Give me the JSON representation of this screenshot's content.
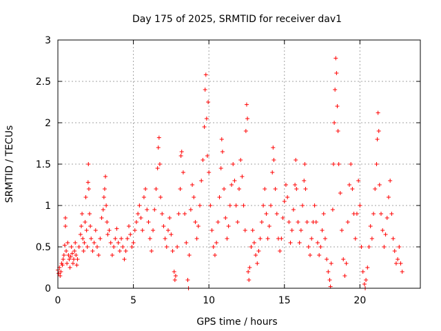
{
  "chart_data": {
    "type": "scatter",
    "title": "Day 175 of 2025, SRMTID for receiver dav1",
    "xlabel": "GPS time / hours",
    "ylabel": "SRMTID / TECUs",
    "xlim": [
      0,
      24
    ],
    "ylim": [
      0,
      3
    ],
    "xticks": [
      0,
      5,
      10,
      15,
      20
    ],
    "xtick_labels": [
      "0",
      "5",
      "10",
      "15",
      "20"
    ],
    "yticks": [
      0,
      0.5,
      1,
      1.5,
      2,
      2.5,
      3
    ],
    "ytick_labels": [
      "0",
      "0.5",
      "1",
      "1.5",
      "2",
      "2.5",
      "3"
    ],
    "grid": true,
    "marker": "+",
    "series": [
      {
        "name": "SRMTID",
        "color": "#ff0000",
        "points": [
          [
            0.0,
            0.22
          ],
          [
            0.05,
            0.18
          ],
          [
            0.1,
            0.25
          ],
          [
            0.15,
            0.15
          ],
          [
            0.2,
            0.2
          ],
          [
            0.25,
            0.3
          ],
          [
            0.3,
            0.28
          ],
          [
            0.35,
            0.35
          ],
          [
            0.4,
            0.4
          ],
          [
            0.45,
            0.52
          ],
          [
            0.5,
            0.85
          ],
          [
            0.5,
            0.75
          ],
          [
            0.55,
            0.45
          ],
          [
            0.6,
            0.3
          ],
          [
            0.65,
            0.55
          ],
          [
            0.7,
            0.4
          ],
          [
            0.75,
            0.35
          ],
          [
            0.8,
            0.25
          ],
          [
            0.85,
            0.38
          ],
          [
            0.9,
            0.5
          ],
          [
            0.95,
            0.42
          ],
          [
            1.0,
            0.3
          ],
          [
            1.05,
            0.35
          ],
          [
            1.1,
            0.45
          ],
          [
            1.15,
            0.55
          ],
          [
            1.2,
            0.4
          ],
          [
            1.25,
            0.28
          ],
          [
            1.3,
            0.35
          ],
          [
            1.4,
            0.5
          ],
          [
            1.5,
            0.65
          ],
          [
            1.55,
            0.75
          ],
          [
            1.6,
            0.9
          ],
          [
            1.65,
            0.6
          ],
          [
            1.7,
            0.45
          ],
          [
            1.75,
            0.55
          ],
          [
            1.8,
            0.8
          ],
          [
            1.85,
            1.1
          ],
          [
            1.9,
            0.7
          ],
          [
            1.95,
            0.5
          ],
          [
            2.0,
            1.28
          ],
          [
            2.02,
            1.5
          ],
          [
            2.05,
            1.2
          ],
          [
            2.1,
            0.9
          ],
          [
            2.15,
            0.75
          ],
          [
            2.2,
            0.6
          ],
          [
            2.3,
            0.45
          ],
          [
            2.4,
            0.55
          ],
          [
            2.5,
            0.7
          ],
          [
            2.6,
            0.5
          ],
          [
            2.7,
            0.4
          ],
          [
            2.8,
            0.6
          ],
          [
            2.9,
            0.85
          ],
          [
            3.0,
            0.95
          ],
          [
            3.05,
            1.1
          ],
          [
            3.1,
            1.2
          ],
          [
            3.15,
            1.35
          ],
          [
            3.2,
            1.0
          ],
          [
            3.25,
            0.8
          ],
          [
            3.3,
            0.65
          ],
          [
            3.4,
            0.7
          ],
          [
            3.5,
            0.55
          ],
          [
            3.6,
            0.4
          ],
          [
            3.7,
            0.5
          ],
          [
            3.8,
            0.6
          ],
          [
            3.9,
            0.72
          ],
          [
            4.0,
            0.55
          ],
          [
            4.1,
            0.45
          ],
          [
            4.2,
            0.6
          ],
          [
            4.3,
            0.5
          ],
          [
            4.4,
            0.35
          ],
          [
            4.5,
            0.45
          ],
          [
            4.6,
            0.6
          ],
          [
            4.7,
            0.75
          ],
          [
            4.8,
            0.65
          ],
          [
            4.9,
            0.5
          ],
          [
            5.0,
            0.55
          ],
          [
            5.1,
            0.7
          ],
          [
            5.2,
            0.8
          ],
          [
            5.3,
            0.9
          ],
          [
            5.4,
            1.0
          ],
          [
            5.5,
            0.85
          ],
          [
            5.6,
            0.7
          ],
          [
            5.7,
            1.1
          ],
          [
            5.8,
            1.2
          ],
          [
            5.9,
            0.95
          ],
          [
            6.0,
            0.8
          ],
          [
            6.1,
            0.6
          ],
          [
            6.2,
            0.45
          ],
          [
            6.3,
            0.7
          ],
          [
            6.4,
            0.95
          ],
          [
            6.5,
            1.2
          ],
          [
            6.6,
            1.45
          ],
          [
            6.65,
            1.7
          ],
          [
            6.7,
            1.82
          ],
          [
            6.75,
            1.5
          ],
          [
            6.8,
            1.1
          ],
          [
            6.9,
            0.9
          ],
          [
            7.0,
            0.75
          ],
          [
            7.1,
            0.6
          ],
          [
            7.2,
            0.5
          ],
          [
            7.3,
            0.7
          ],
          [
            7.4,
            0.85
          ],
          [
            7.5,
            0.65
          ],
          [
            7.6,
            0.45
          ],
          [
            7.7,
            0.2
          ],
          [
            7.75,
            0.1
          ],
          [
            7.8,
            0.15
          ],
          [
            7.9,
            0.5
          ],
          [
            8.0,
            0.9
          ],
          [
            8.1,
            1.2
          ],
          [
            8.15,
            1.6
          ],
          [
            8.2,
            1.65
          ],
          [
            8.3,
            1.4
          ],
          [
            8.4,
            0.9
          ],
          [
            8.5,
            0.55
          ],
          [
            8.6,
            0.1
          ],
          [
            8.65,
            0.0
          ],
          [
            8.7,
            0.4
          ],
          [
            8.8,
            0.95
          ],
          [
            8.9,
            1.25
          ],
          [
            9.0,
            1.1
          ],
          [
            9.1,
            0.8
          ],
          [
            9.2,
            0.6
          ],
          [
            9.3,
            0.75
          ],
          [
            9.4,
            1.0
          ],
          [
            9.5,
            1.3
          ],
          [
            9.6,
            1.55
          ],
          [
            9.7,
            1.95
          ],
          [
            9.75,
            2.4
          ],
          [
            9.8,
            2.58
          ],
          [
            9.85,
            2.05
          ],
          [
            9.9,
            1.6
          ],
          [
            9.95,
            2.25
          ],
          [
            10.0,
            1.4
          ],
          [
            10.1,
            1.0
          ],
          [
            10.2,
            0.7
          ],
          [
            10.3,
            0.5
          ],
          [
            10.4,
            0.4
          ],
          [
            10.5,
            0.55
          ],
          [
            10.6,
            0.8
          ],
          [
            10.7,
            1.1
          ],
          [
            10.8,
            1.45
          ],
          [
            10.85,
            1.8
          ],
          [
            10.9,
            1.65
          ],
          [
            11.0,
            1.2
          ],
          [
            11.1,
            0.85
          ],
          [
            11.2,
            0.6
          ],
          [
            11.3,
            0.75
          ],
          [
            11.4,
            1.0
          ],
          [
            11.5,
            1.25
          ],
          [
            11.6,
            1.5
          ],
          [
            11.7,
            1.3
          ],
          [
            11.8,
            1.0
          ],
          [
            11.9,
            0.8
          ],
          [
            12.0,
            1.2
          ],
          [
            12.1,
            1.55
          ],
          [
            12.2,
            1.35
          ],
          [
            12.3,
            1.0
          ],
          [
            12.4,
            0.7
          ],
          [
            12.45,
            1.9
          ],
          [
            12.5,
            2.22
          ],
          [
            12.55,
            2.05
          ],
          [
            12.6,
            0.2
          ],
          [
            12.65,
            0.1
          ],
          [
            12.7,
            0.25
          ],
          [
            12.8,
            0.5
          ],
          [
            12.9,
            0.7
          ],
          [
            13.0,
            0.55
          ],
          [
            13.1,
            0.4
          ],
          [
            13.2,
            0.3
          ],
          [
            13.3,
            0.45
          ],
          [
            13.4,
            0.6
          ],
          [
            13.5,
            0.8
          ],
          [
            13.6,
            1.0
          ],
          [
            13.7,
            1.2
          ],
          [
            13.8,
            0.9
          ],
          [
            13.9,
            0.6
          ],
          [
            14.0,
            0.75
          ],
          [
            14.1,
            1.0
          ],
          [
            14.2,
            1.4
          ],
          [
            14.25,
            1.7
          ],
          [
            14.3,
            1.55
          ],
          [
            14.4,
            1.2
          ],
          [
            14.5,
            0.9
          ],
          [
            14.6,
            0.6
          ],
          [
            14.7,
            0.45
          ],
          [
            14.8,
            0.6
          ],
          [
            14.9,
            0.85
          ],
          [
            15.0,
            1.05
          ],
          [
            15.1,
            1.25
          ],
          [
            15.2,
            1.1
          ],
          [
            15.3,
            0.8
          ],
          [
            15.4,
            0.55
          ],
          [
            15.5,
            0.7
          ],
          [
            15.6,
            0.95
          ],
          [
            15.7,
            1.25
          ],
          [
            15.75,
            1.55
          ],
          [
            15.8,
            1.2
          ],
          [
            15.9,
            0.8
          ],
          [
            16.0,
            0.55
          ],
          [
            16.1,
            0.7
          ],
          [
            16.2,
            1.0
          ],
          [
            16.3,
            1.3
          ],
          [
            16.35,
            1.5
          ],
          [
            16.4,
            1.2
          ],
          [
            16.5,
            0.8
          ],
          [
            16.6,
            0.5
          ],
          [
            16.7,
            0.4
          ],
          [
            16.8,
            0.6
          ],
          [
            16.9,
            0.8
          ],
          [
            17.0,
            1.0
          ],
          [
            17.1,
            0.8
          ],
          [
            17.2,
            0.55
          ],
          [
            17.3,
            0.4
          ],
          [
            17.4,
            0.5
          ],
          [
            17.5,
            0.7
          ],
          [
            17.6,
            0.9
          ],
          [
            17.7,
            0.6
          ],
          [
            17.8,
            0.35
          ],
          [
            17.9,
            0.2
          ],
          [
            18.0,
            0.1
          ],
          [
            18.05,
            0.02
          ],
          [
            18.1,
            0.3
          ],
          [
            18.2,
            0.95
          ],
          [
            18.25,
            1.5
          ],
          [
            18.3,
            2.0
          ],
          [
            18.35,
            2.4
          ],
          [
            18.4,
            2.78
          ],
          [
            18.45,
            2.6
          ],
          [
            18.5,
            2.2
          ],
          [
            18.55,
            1.9
          ],
          [
            18.6,
            1.5
          ],
          [
            18.7,
            1.15
          ],
          [
            18.8,
            0.7
          ],
          [
            18.9,
            0.35
          ],
          [
            19.0,
            0.15
          ],
          [
            19.1,
            0.3
          ],
          [
            19.2,
            0.8
          ],
          [
            19.3,
            1.25
          ],
          [
            19.4,
            1.5
          ],
          [
            19.5,
            1.2
          ],
          [
            19.6,
            0.9
          ],
          [
            19.7,
            0.6
          ],
          [
            19.8,
            0.9
          ],
          [
            19.9,
            1.3
          ],
          [
            20.0,
            1.0
          ],
          [
            20.1,
            0.5
          ],
          [
            20.2,
            0.2
          ],
          [
            20.3,
            0.05
          ],
          [
            20.35,
            0.0
          ],
          [
            20.4,
            0.1
          ],
          [
            20.5,
            0.25
          ],
          [
            20.6,
            0.5
          ],
          [
            20.7,
            0.75
          ],
          [
            20.8,
            0.6
          ],
          [
            20.9,
            0.9
          ],
          [
            21.0,
            1.2
          ],
          [
            21.1,
            1.5
          ],
          [
            21.15,
            1.8
          ],
          [
            21.2,
            2.12
          ],
          [
            21.25,
            1.9
          ],
          [
            21.3,
            1.25
          ],
          [
            21.4,
            0.9
          ],
          [
            21.5,
            0.7
          ],
          [
            21.6,
            0.5
          ],
          [
            21.7,
            0.65
          ],
          [
            21.8,
            0.85
          ],
          [
            21.9,
            1.1
          ],
          [
            22.0,
            1.3
          ],
          [
            22.1,
            0.9
          ],
          [
            22.2,
            0.6
          ],
          [
            22.3,
            0.45
          ],
          [
            22.4,
            0.3
          ],
          [
            22.5,
            0.35
          ],
          [
            22.6,
            0.5
          ],
          [
            22.7,
            0.3
          ],
          [
            22.8,
            0.2
          ]
        ]
      }
    ]
  }
}
